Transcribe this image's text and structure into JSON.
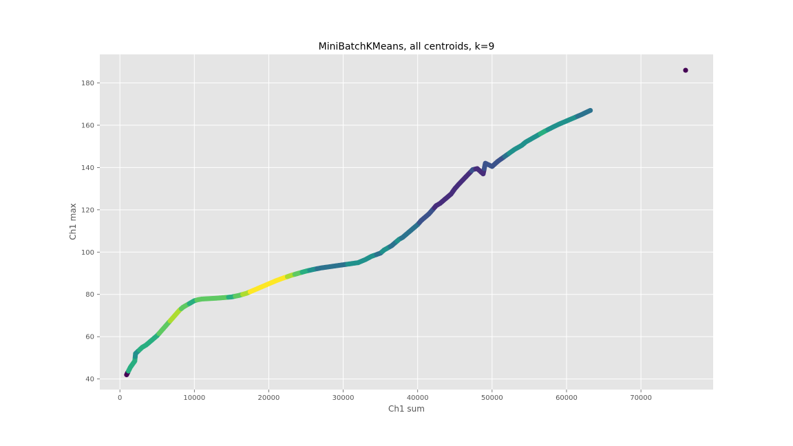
{
  "chart_data": {
    "type": "scatter",
    "title": "MiniBatchKMeans, all centroids, k=9",
    "xlabel": "Ch1 sum",
    "ylabel": "Ch1 max",
    "xlim": [
      -2700,
      79700
    ],
    "ylim": [
      35,
      193.5
    ],
    "xticks": [
      0,
      10000,
      20000,
      30000,
      40000,
      50000,
      60000,
      70000
    ],
    "yticks": [
      40,
      60,
      80,
      100,
      120,
      140,
      160,
      180
    ],
    "grid": true,
    "background": "#e5e5e5",
    "colormap": "viridis",
    "cluster_colors": [
      "#440154",
      "#472d7b",
      "#3b528b",
      "#2c728e",
      "#21918c",
      "#28ae80",
      "#5ec962",
      "#addc30",
      "#fde725"
    ],
    "points": [
      [
        900,
        42,
        0
      ],
      [
        1400,
        45.5,
        5
      ],
      [
        1600,
        46.5,
        5
      ],
      [
        1800,
        47.5,
        5
      ],
      [
        2000,
        48.5,
        5
      ],
      [
        2100,
        52,
        4
      ],
      [
        3000,
        55,
        5
      ],
      [
        3500,
        56,
        5
      ],
      [
        4000,
        57.5,
        5
      ],
      [
        4500,
        59,
        5
      ],
      [
        5000,
        60.5,
        5
      ],
      [
        5500,
        62.5,
        6
      ],
      [
        6000,
        64.5,
        6
      ],
      [
        6500,
        66.5,
        6
      ],
      [
        7000,
        68.5,
        7
      ],
      [
        7500,
        70.5,
        7
      ],
      [
        8000,
        72.5,
        7
      ],
      [
        8500,
        74,
        6
      ],
      [
        9000,
        75,
        6
      ],
      [
        9500,
        76,
        5
      ],
      [
        10000,
        77,
        5
      ],
      [
        10500,
        77.5,
        6
      ],
      [
        11000,
        77.8,
        6
      ],
      [
        12000,
        78,
        6
      ],
      [
        13000,
        78.2,
        6
      ],
      [
        14000,
        78.5,
        6
      ],
      [
        15000,
        78.8,
        5
      ],
      [
        16000,
        79.5,
        6
      ],
      [
        17000,
        80.5,
        7
      ],
      [
        18000,
        82,
        8
      ],
      [
        19000,
        83.5,
        8
      ],
      [
        20000,
        85,
        8
      ],
      [
        21000,
        86.5,
        8
      ],
      [
        22000,
        87.8,
        8
      ],
      [
        23000,
        89,
        7
      ],
      [
        24000,
        90,
        6
      ],
      [
        25000,
        91,
        5
      ],
      [
        26000,
        91.8,
        4
      ],
      [
        27000,
        92.5,
        3
      ],
      [
        28000,
        93,
        3
      ],
      [
        29000,
        93.5,
        3
      ],
      [
        30000,
        94,
        3
      ],
      [
        31000,
        94.5,
        4
      ],
      [
        32000,
        95,
        4
      ],
      [
        33000,
        96.5,
        4
      ],
      [
        33800,
        98,
        4
      ],
      [
        35000,
        99.5,
        3
      ],
      [
        35500,
        101,
        4
      ],
      [
        36000,
        102,
        4
      ],
      [
        36500,
        103,
        3
      ],
      [
        37000,
        104.5,
        3
      ],
      [
        37500,
        106,
        4
      ],
      [
        38000,
        107,
        3
      ],
      [
        38500,
        108.5,
        3
      ],
      [
        39000,
        110,
        3
      ],
      [
        39500,
        111.5,
        3
      ],
      [
        40000,
        113,
        3
      ],
      [
        40500,
        115,
        2
      ],
      [
        41000,
        116.5,
        2
      ],
      [
        41500,
        118,
        2
      ],
      [
        42000,
        120,
        2
      ],
      [
        42500,
        122,
        1
      ],
      [
        43000,
        123,
        1
      ],
      [
        43500,
        124.5,
        1
      ],
      [
        44000,
        126,
        1
      ],
      [
        44500,
        127.5,
        1
      ],
      [
        45000,
        130,
        1
      ],
      [
        45500,
        132,
        1
      ],
      [
        47000,
        137.5,
        1
      ],
      [
        47400,
        139,
        2
      ],
      [
        48000,
        139.5,
        1
      ],
      [
        48800,
        137,
        1
      ],
      [
        49100,
        142,
        2
      ],
      [
        50000,
        140.5,
        2
      ],
      [
        50800,
        143,
        2
      ],
      [
        51400,
        144.5,
        2
      ],
      [
        52000,
        146,
        3
      ],
      [
        52600,
        147.5,
        4
      ],
      [
        53000,
        148.5,
        4
      ],
      [
        53500,
        149.5,
        4
      ],
      [
        54000,
        150.5,
        4
      ],
      [
        54500,
        152,
        4
      ],
      [
        55000,
        153,
        4
      ],
      [
        56000,
        155,
        4
      ],
      [
        57000,
        157,
        5
      ],
      [
        58000,
        158.8,
        4
      ],
      [
        59000,
        160.5,
        4
      ],
      [
        60000,
        162,
        4
      ],
      [
        61000,
        163.5,
        4
      ],
      [
        62000,
        165,
        3
      ],
      [
        62600,
        166,
        3
      ],
      [
        63200,
        167,
        3
      ],
      [
        76000,
        186,
        0
      ]
    ]
  }
}
